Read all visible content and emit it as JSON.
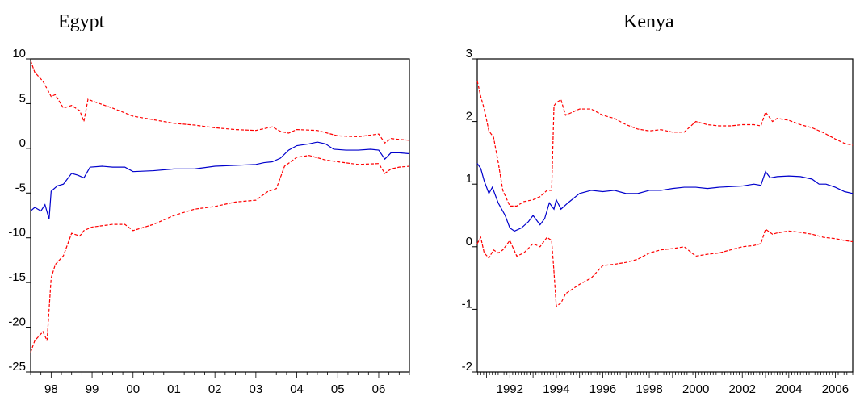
{
  "chart_data": [
    {
      "type": "line",
      "title": "Egypt",
      "xlabel": "",
      "ylabel": "",
      "ylim": [
        -25,
        10
      ],
      "yticks": [
        10,
        5,
        0,
        -5,
        -10,
        -15,
        -20,
        -25
      ],
      "xlim": [
        1997.5,
        2006.75
      ],
      "xticks": [
        {
          "label": "98",
          "x": 1998
        },
        {
          "label": "99",
          "x": 1999
        },
        {
          "label": "00",
          "x": 2000
        },
        {
          "label": "01",
          "x": 2001
        },
        {
          "label": "02",
          "x": 2002
        },
        {
          "label": "03",
          "x": 2003
        },
        {
          "label": "04",
          "x": 2004
        },
        {
          "label": "05",
          "x": 2005
        },
        {
          "label": "06",
          "x": 2006
        }
      ],
      "grid": false,
      "legend": "none",
      "series": [
        {
          "style": "solid",
          "color": "#0000cc",
          "x": [
            1997.5,
            1997.6,
            1997.75,
            1997.85,
            1997.95,
            1998.0,
            1998.15,
            1998.3,
            1998.5,
            1998.65,
            1998.8,
            1998.95,
            1999.25,
            1999.5,
            1999.8,
            2000.0,
            2000.5,
            2001.0,
            2001.5,
            2002.0,
            2002.5,
            2003.0,
            2003.2,
            2003.4,
            2003.6,
            2003.8,
            2004.0,
            2004.3,
            2004.5,
            2004.7,
            2004.9,
            2005.2,
            2005.5,
            2005.8,
            2006.0,
            2006.15,
            2006.3,
            2006.5,
            2006.75
          ],
          "y": [
            -7.0,
            -6.6,
            -7.0,
            -6.3,
            -7.9,
            -4.8,
            -4.2,
            -4.0,
            -2.8,
            -3.0,
            -3.3,
            -2.1,
            -2.0,
            -2.1,
            -2.1,
            -2.6,
            -2.5,
            -2.3,
            -2.3,
            -2.0,
            -1.9,
            -1.8,
            -1.6,
            -1.5,
            -1.1,
            -0.2,
            0.3,
            0.5,
            0.7,
            0.5,
            -0.1,
            -0.2,
            -0.2,
            -0.1,
            -0.2,
            -1.2,
            -0.5,
            -0.5,
            -0.6
          ]
        },
        {
          "style": "dashed",
          "color": "#ff0000",
          "x": [
            1997.5,
            1997.6,
            1997.8,
            1998.0,
            1998.1,
            1998.3,
            1998.5,
            1998.7,
            1998.8,
            1998.9,
            1999.0,
            1999.5,
            2000.0,
            2000.5,
            2001.0,
            2001.5,
            2002.0,
            2002.5,
            2003.0,
            2003.2,
            2003.4,
            2003.6,
            2003.8,
            2004.0,
            2004.5,
            2005.0,
            2005.5,
            2006.0,
            2006.15,
            2006.3,
            2006.5,
            2006.75
          ],
          "y": [
            9.8,
            8.5,
            7.5,
            5.8,
            6.0,
            4.5,
            4.8,
            4.2,
            3.0,
            5.5,
            5.3,
            4.5,
            3.6,
            3.2,
            2.8,
            2.6,
            2.3,
            2.1,
            2.0,
            2.2,
            2.4,
            1.9,
            1.7,
            2.1,
            2.0,
            1.4,
            1.3,
            1.6,
            0.6,
            1.1,
            1.0,
            0.9
          ]
        },
        {
          "style": "dashed",
          "color": "#ff0000",
          "x": [
            1997.5,
            1997.6,
            1997.8,
            1997.9,
            1998.0,
            1998.1,
            1998.3,
            1998.5,
            1998.7,
            1998.8,
            1999.0,
            1999.5,
            1999.8,
            2000.0,
            2000.5,
            2001.0,
            2001.5,
            2002.0,
            2002.5,
            2003.0,
            2003.3,
            2003.5,
            2003.7,
            2004.0,
            2004.3,
            2004.7,
            2005.0,
            2005.5,
            2006.0,
            2006.15,
            2006.3,
            2006.5,
            2006.75
          ],
          "y": [
            -22.8,
            -21.5,
            -20.5,
            -21.5,
            -14.5,
            -13.0,
            -12.0,
            -9.5,
            -9.8,
            -9.2,
            -8.8,
            -8.5,
            -8.5,
            -9.2,
            -8.5,
            -7.5,
            -6.8,
            -6.5,
            -6.0,
            -5.8,
            -4.8,
            -4.5,
            -2.0,
            -1.0,
            -0.8,
            -1.3,
            -1.5,
            -1.8,
            -1.7,
            -2.8,
            -2.3,
            -2.1,
            -2.0
          ]
        }
      ]
    },
    {
      "type": "line",
      "title": "Kenya",
      "xlabel": "",
      "ylabel": "",
      "ylim": [
        -2,
        3
      ],
      "yticks": [
        3,
        2,
        1,
        0,
        -1,
        -2
      ],
      "xlim": [
        1990.6,
        2006.75
      ],
      "xticks": [
        {
          "label": "1992",
          "x": 1992
        },
        {
          "label": "1994",
          "x": 1994
        },
        {
          "label": "1996",
          "x": 1996
        },
        {
          "label": "1998",
          "x": 1998
        },
        {
          "label": "2000",
          "x": 2000
        },
        {
          "label": "2002",
          "x": 2002
        },
        {
          "label": "2004",
          "x": 2004
        },
        {
          "label": "2006",
          "x": 2006
        }
      ],
      "grid": false,
      "legend": "none",
      "series": [
        {
          "style": "solid",
          "color": "#0000cc",
          "x": [
            1990.6,
            1990.75,
            1990.9,
            1991.1,
            1991.25,
            1991.5,
            1991.8,
            1992.0,
            1992.2,
            1992.5,
            1992.8,
            1993.0,
            1993.3,
            1993.5,
            1993.7,
            1993.9,
            1994.0,
            1994.2,
            1994.5,
            1995.0,
            1995.5,
            1996.0,
            1996.5,
            1997.0,
            1997.5,
            1998.0,
            1998.5,
            1999.0,
            1999.5,
            2000.0,
            2000.5,
            2001.0,
            2001.5,
            2002.0,
            2002.5,
            2002.8,
            2003.0,
            2003.2,
            2003.5,
            2004.0,
            2004.5,
            2005.0,
            2005.3,
            2005.6,
            2006.0,
            2006.4,
            2006.75
          ],
          "y": [
            1.33,
            1.25,
            1.05,
            0.85,
            0.95,
            0.7,
            0.5,
            0.3,
            0.25,
            0.3,
            0.4,
            0.5,
            0.35,
            0.45,
            0.7,
            0.6,
            0.75,
            0.6,
            0.7,
            0.85,
            0.9,
            0.88,
            0.9,
            0.85,
            0.85,
            0.9,
            0.9,
            0.93,
            0.95,
            0.95,
            0.93,
            0.95,
            0.96,
            0.97,
            1.0,
            0.98,
            1.2,
            1.1,
            1.12,
            1.13,
            1.12,
            1.08,
            1.0,
            1.0,
            0.95,
            0.88,
            0.85
          ]
        },
        {
          "style": "dashed",
          "color": "#ff0000",
          "x": [
            1990.6,
            1990.75,
            1990.9,
            1991.1,
            1991.3,
            1991.5,
            1991.7,
            1992.0,
            1992.3,
            1992.6,
            1993.0,
            1993.3,
            1993.6,
            1993.8,
            1993.9,
            1994.0,
            1994.2,
            1994.4,
            1995.0,
            1995.5,
            1996.0,
            1996.5,
            1997.0,
            1997.5,
            1998.0,
            1998.5,
            1999.0,
            1999.5,
            2000.0,
            2000.5,
            2001.0,
            2001.5,
            2002.0,
            2002.5,
            2002.8,
            2003.0,
            2003.3,
            2003.5,
            2004.0,
            2004.5,
            2005.0,
            2005.5,
            2006.0,
            2006.4,
            2006.75
          ],
          "y": [
            2.65,
            2.4,
            2.2,
            1.85,
            1.75,
            1.35,
            0.9,
            0.65,
            0.65,
            0.72,
            0.75,
            0.8,
            0.9,
            0.9,
            2.25,
            2.3,
            2.35,
            2.1,
            2.2,
            2.2,
            2.1,
            2.05,
            1.95,
            1.88,
            1.85,
            1.87,
            1.83,
            1.83,
            2.0,
            1.95,
            1.93,
            1.93,
            1.95,
            1.95,
            1.93,
            2.15,
            2.0,
            2.05,
            2.02,
            1.95,
            1.9,
            1.82,
            1.72,
            1.65,
            1.62
          ]
        },
        {
          "style": "dashed",
          "color": "#ff0000",
          "x": [
            1990.6,
            1990.75,
            1990.9,
            1991.1,
            1991.3,
            1991.5,
            1991.7,
            1992.0,
            1992.3,
            1992.6,
            1993.0,
            1993.3,
            1993.6,
            1993.8,
            1993.9,
            1994.0,
            1994.2,
            1994.4,
            1995.0,
            1995.5,
            1996.0,
            1996.5,
            1997.0,
            1997.5,
            1998.0,
            1998.5,
            1999.0,
            1999.5,
            2000.0,
            2000.5,
            2001.0,
            2001.5,
            2002.0,
            2002.5,
            2002.8,
            2003.0,
            2003.3,
            2003.5,
            2004.0,
            2004.5,
            2005.0,
            2005.5,
            2006.0,
            2006.4,
            2006.75
          ],
          "y": [
            0.05,
            0.15,
            -0.1,
            -0.18,
            -0.05,
            -0.1,
            -0.05,
            0.1,
            -0.15,
            -0.1,
            0.05,
            0.0,
            0.15,
            0.1,
            -0.4,
            -0.95,
            -0.9,
            -0.75,
            -0.6,
            -0.5,
            -0.3,
            -0.28,
            -0.25,
            -0.2,
            -0.1,
            -0.05,
            -0.03,
            0.0,
            -0.15,
            -0.12,
            -0.1,
            -0.05,
            0.0,
            0.02,
            0.05,
            0.28,
            0.2,
            0.22,
            0.25,
            0.23,
            0.2,
            0.15,
            0.13,
            0.1,
            0.08
          ]
        }
      ]
    }
  ]
}
